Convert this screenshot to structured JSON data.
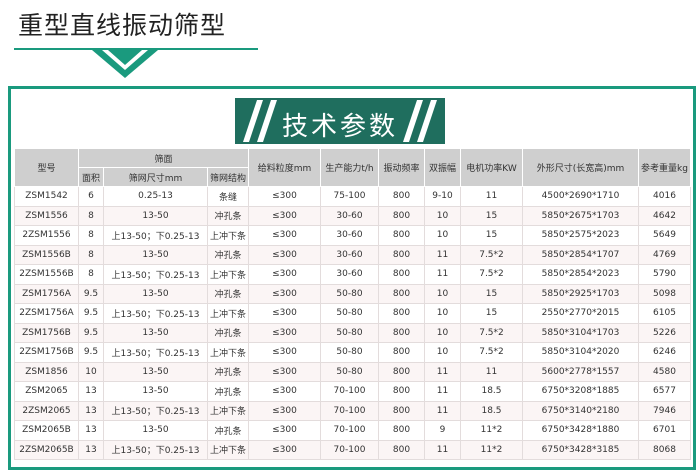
{
  "header": {
    "title": "重型直线振动筛型"
  },
  "banner": {
    "title": "技术参数"
  },
  "table": {
    "group_header": "筛面",
    "columns": [
      "型号",
      "面积",
      "筛网尺寸mm",
      "筛网结构",
      "给料粒度mm",
      "生产能力t/h",
      "振动频率",
      "双振幅",
      "电机功率KW",
      "外形尺寸(长宽高)mm",
      "参考重量kg"
    ],
    "rows": [
      [
        "ZSM1542",
        "6",
        "0.25-13",
        "条缝",
        "≤300",
        "75-100",
        "800",
        "9-10",
        "11",
        "4500*2690*1710",
        "4016"
      ],
      [
        "ZSM1556",
        "8",
        "13-50",
        "冲孔条",
        "≤300",
        "30-60",
        "800",
        "10",
        "15",
        "5850*2675*1703",
        "4642"
      ],
      [
        "2ZSM1556",
        "8",
        "上13-50；下0.25-13",
        "上冲下条",
        "≤300",
        "30-60",
        "800",
        "10",
        "15",
        "5850*2575*2023",
        "5649"
      ],
      [
        "ZSM1556B",
        "8",
        "13-50",
        "冲孔条",
        "≤300",
        "30-60",
        "800",
        "11",
        "7.5*2",
        "5850*2854*1707",
        "4769"
      ],
      [
        "2ZSM1556B",
        "8",
        "上13-50；下0.25-13",
        "上冲下条",
        "≤300",
        "30-60",
        "800",
        "11",
        "7.5*2",
        "5850*2854*2023",
        "5790"
      ],
      [
        "ZSM1756A",
        "9.5",
        "13-50",
        "冲孔条",
        "≤300",
        "50-80",
        "800",
        "10",
        "15",
        "5850*2925*1703",
        "5098"
      ],
      [
        "2ZSM1756A",
        "9.5",
        "上13-50；下0.25-13",
        "上冲下条",
        "≤300",
        "50-80",
        "800",
        "10",
        "15",
        "2550*2770*2015",
        "6105"
      ],
      [
        "ZSM1756B",
        "9.5",
        "13-50",
        "冲孔条",
        "≤300",
        "50-80",
        "800",
        "10",
        "7.5*2",
        "5850*3104*1703",
        "5226"
      ],
      [
        "2ZSM1756B",
        "9.5",
        "上13-50；下0.25-13",
        "上冲下条",
        "≤300",
        "50-80",
        "800",
        "10",
        "7.5*2",
        "5850*3104*2020",
        "6246"
      ],
      [
        "ZSM1856",
        "10",
        "13-50",
        "冲孔条",
        "≤300",
        "50-80",
        "800",
        "11",
        "11",
        "5600*2778*1557",
        "4580"
      ],
      [
        "ZSM2065",
        "13",
        "13-50",
        "冲孔条",
        "≤300",
        "70-100",
        "800",
        "11",
        "18.5",
        "6750*3208*1885",
        "6577"
      ],
      [
        "2ZSM2065",
        "13",
        "上13-50；下0.25-13",
        "上冲下条",
        "≤300",
        "70-100",
        "800",
        "11",
        "18.5",
        "6750*3140*2180",
        "7946"
      ],
      [
        "ZSM2065B",
        "13",
        "13-50",
        "冲孔条",
        "≤300",
        "70-100",
        "800",
        "9",
        "11*2",
        "6750*3428*1880",
        "6701"
      ],
      [
        "2ZSM2065B",
        "13",
        "上13-50；下0.25-13",
        "上冲下条",
        "≤300",
        "70-100",
        "800",
        "11",
        "11*2",
        "6750*3428*3185",
        "8068"
      ]
    ]
  }
}
